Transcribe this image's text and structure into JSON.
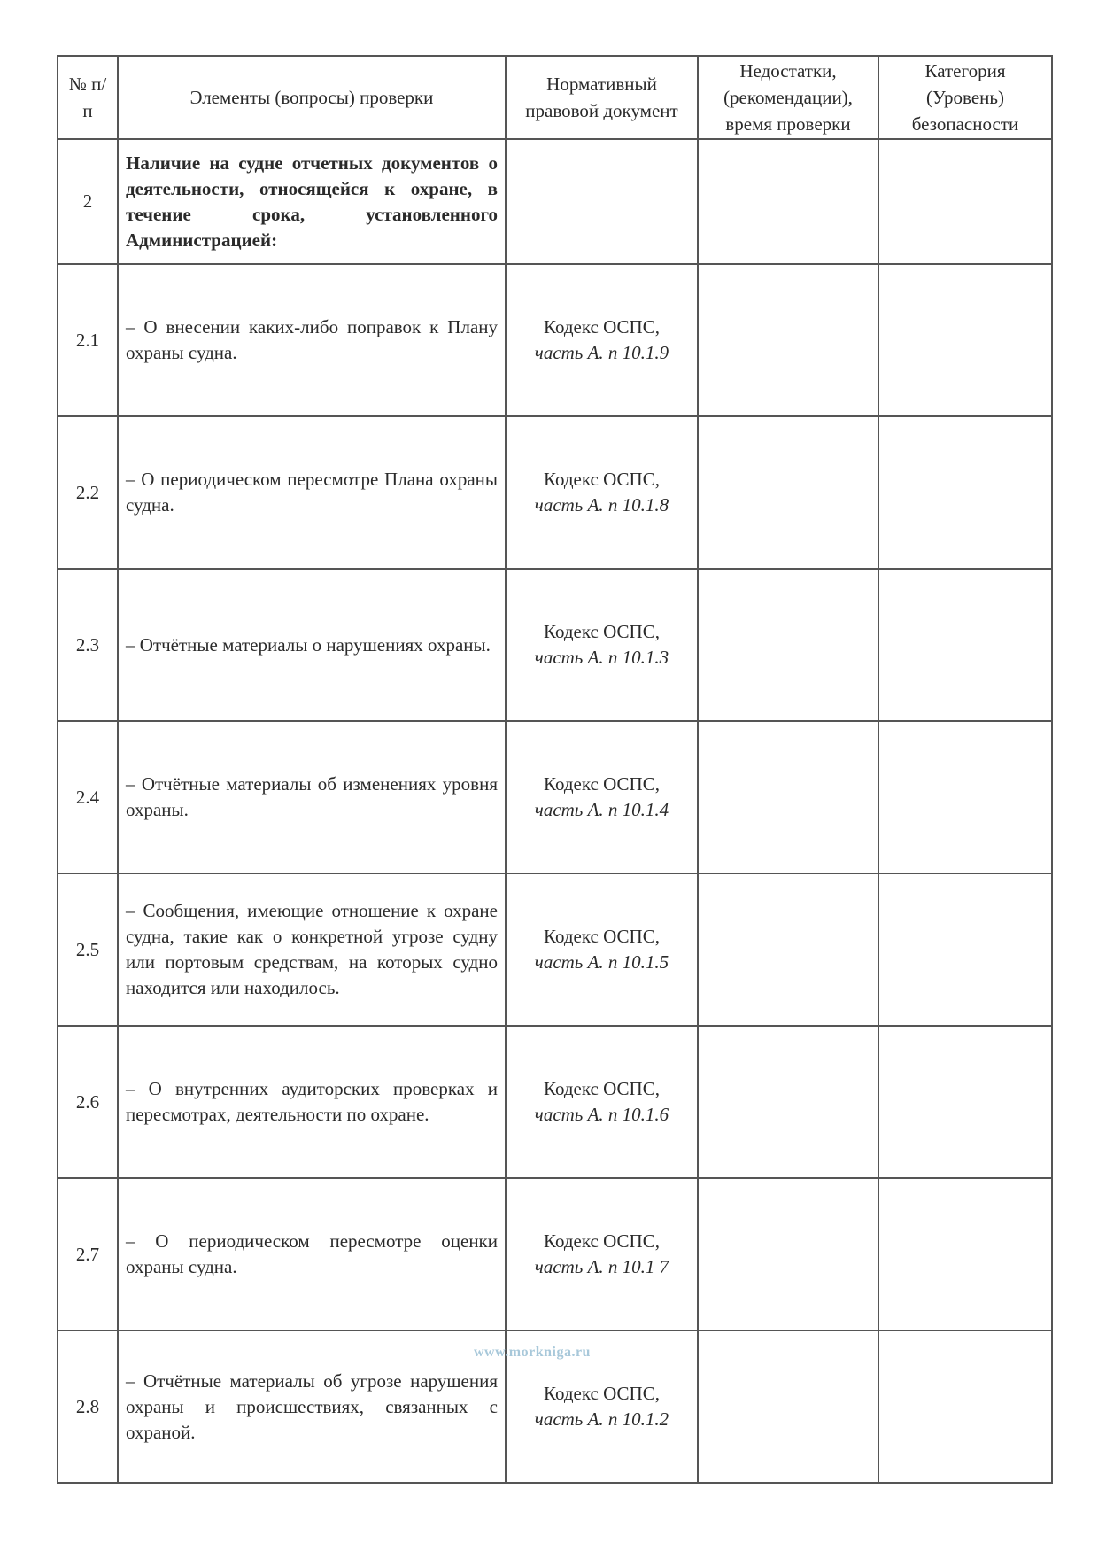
{
  "headers": {
    "num": "№ п/п",
    "elements": "Элементы (вопросы) проверки",
    "document": "Нормативный правовой документ",
    "deficiencies": "Недостатки, (рекомендации), время проверки",
    "category": "Категория (Уровень) безопасности"
  },
  "rows": [
    {
      "num": "2",
      "text": "Наличие на судне отчетных документов о деятельности, относящейся к охране, в течение срока, установленного Администрацией:",
      "doc": "",
      "doc_ref": ""
    },
    {
      "num": "2.1",
      "text": "– О внесении каких-либо поправок к Плану охраны судна.",
      "doc": "Кодекс ОСПС,",
      "doc_ref": "часть А. п 10.1.9"
    },
    {
      "num": "2.2",
      "text": "– О периодическом пересмотре Плана охраны судна.",
      "doc": "Кодекс ОСПС,",
      "doc_ref": "часть А. п 10.1.8"
    },
    {
      "num": "2.3",
      "text": "– Отчётные материалы о нарушениях охраны.",
      "doc": "Кодекс ОСПС,",
      "doc_ref": "часть А. п 10.1.3"
    },
    {
      "num": "2.4",
      "text": "– Отчётные материалы об изменениях уровня охраны.",
      "doc": "Кодекс ОСПС,",
      "doc_ref": "часть А. п 10.1.4"
    },
    {
      "num": "2.5",
      "text": "– Сообщения, имеющие отношение к охране судна, такие как о конкретной угрозе судну или портовым средствам, на которых судно находится или находилось.",
      "doc": "Кодекс ОСПС,",
      "doc_ref": "часть А. п 10.1.5"
    },
    {
      "num": "2.6",
      "text": "– О внутренних аудиторских проверках и пересмотрах, деятельности по охране.",
      "doc": "Кодекс ОСПС,",
      "doc_ref": "часть А. п 10.1.6"
    },
    {
      "num": "2.7",
      "text": "– О периодическом пересмотре оценки охраны судна.",
      "doc": "Кодекс ОСПС,",
      "doc_ref": "часть А. п 10.1 7"
    },
    {
      "num": "2.8",
      "text": "– Отчётные материалы об угрозе нарушения охраны и происшествиях, связанных с охраной.",
      "doc": "Кодекс ОСПС,",
      "doc_ref": "часть А. п 10.1.2"
    }
  ],
  "watermark": "www.morkniga.ru"
}
